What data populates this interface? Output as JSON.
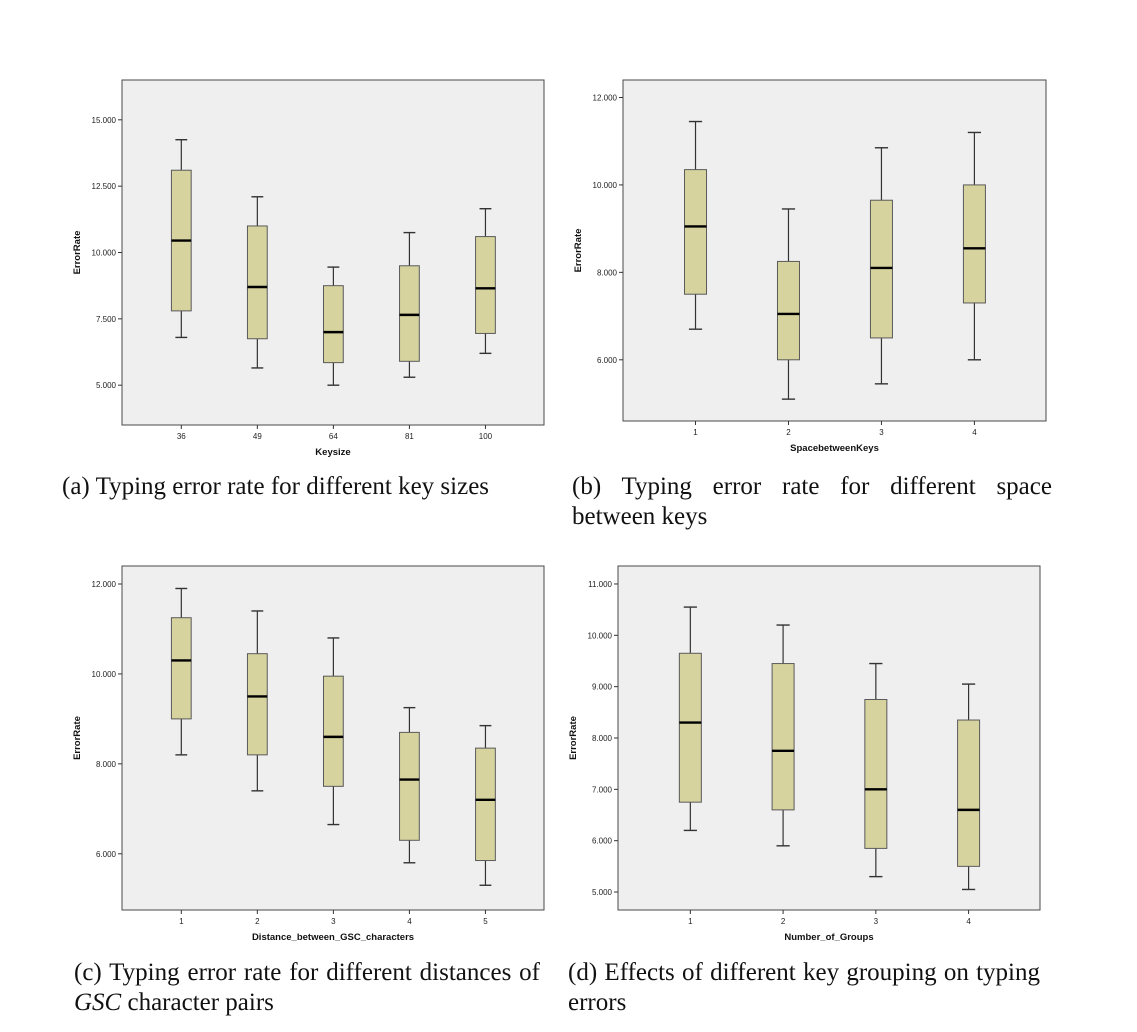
{
  "colors": {
    "plot_background": "#efefef",
    "box_fill": "#d6d39e",
    "median": "#000000"
  },
  "chart_data": [
    {
      "type": "box",
      "xlabel": "Keysize",
      "ylabel": "ErrorRate",
      "categories": [
        "36",
        "49",
        "64",
        "81",
        "100"
      ],
      "yticks": [
        "5.000",
        "7.500",
        "10.000",
        "12.500",
        "15.000"
      ],
      "ylim": [
        3.5,
        16.5
      ],
      "boxes": [
        {
          "min": 6.8,
          "q1": 7.8,
          "median": 10.45,
          "q3": 13.1,
          "max": 14.25
        },
        {
          "min": 5.65,
          "q1": 6.75,
          "median": 8.7,
          "q3": 11.0,
          "max": 12.1
        },
        {
          "min": 5.0,
          "q1": 5.85,
          "median": 7.0,
          "q3": 8.75,
          "max": 9.45
        },
        {
          "min": 5.3,
          "q1": 5.9,
          "median": 7.65,
          "q3": 9.5,
          "max": 10.75
        },
        {
          "min": 6.2,
          "q1": 6.95,
          "median": 8.65,
          "q3": 10.6,
          "max": 11.65
        }
      ],
      "caption": {
        "label": "(a)",
        "text": "Typing error rate for different key sizes",
        "italic": ""
      }
    },
    {
      "type": "box",
      "xlabel": "SpacebetweenKeys",
      "ylabel": "ErrorRate",
      "categories": [
        "1",
        "2",
        "3",
        "4"
      ],
      "yticks": [
        "6.000",
        "8.000",
        "10.000",
        "12.000"
      ],
      "ylim": [
        4.6,
        12.4
      ],
      "boxes": [
        {
          "min": 6.7,
          "q1": 7.5,
          "median": 9.05,
          "q3": 10.35,
          "max": 11.45
        },
        {
          "min": 5.1,
          "q1": 6.0,
          "median": 7.05,
          "q3": 8.25,
          "max": 9.45
        },
        {
          "min": 5.45,
          "q1": 6.5,
          "median": 8.1,
          "q3": 9.65,
          "max": 10.85
        },
        {
          "min": 6.0,
          "q1": 7.3,
          "median": 8.55,
          "q3": 10.0,
          "max": 11.2
        }
      ],
      "caption": {
        "label": "(b)",
        "text": "Typing error rate for different space between keys",
        "italic": ""
      }
    },
    {
      "type": "box",
      "xlabel": "Distance_between_GSC_characters",
      "ylabel": "ErrorRate",
      "categories": [
        "1",
        "2",
        "3",
        "4",
        "5"
      ],
      "yticks": [
        "6.000",
        "8.000",
        "10.000",
        "12.000"
      ],
      "ylim": [
        4.75,
        12.4
      ],
      "boxes": [
        {
          "min": 8.2,
          "q1": 9.0,
          "median": 10.3,
          "q3": 11.25,
          "max": 11.9
        },
        {
          "min": 7.4,
          "q1": 8.2,
          "median": 9.5,
          "q3": 10.45,
          "max": 11.4
        },
        {
          "min": 6.65,
          "q1": 7.5,
          "median": 8.6,
          "q3": 9.95,
          "max": 10.8
        },
        {
          "min": 5.8,
          "q1": 6.3,
          "median": 7.65,
          "q3": 8.7,
          "max": 9.25
        },
        {
          "min": 5.3,
          "q1": 5.85,
          "median": 7.2,
          "q3": 8.35,
          "max": 8.85
        }
      ],
      "caption": {
        "label": "(c)",
        "text": "Typing error rate for different distances of",
        "italic": "GSC",
        "text_after": "character pairs"
      }
    },
    {
      "type": "box",
      "xlabel": "Number_of_Groups",
      "ylabel": "ErrorRate",
      "categories": [
        "1",
        "2",
        "3",
        "4"
      ],
      "yticks": [
        "5.000",
        "6.000",
        "7.000",
        "8.000",
        "9.000",
        "10.000",
        "11.000"
      ],
      "ylim": [
        4.65,
        11.35
      ],
      "boxes": [
        {
          "min": 6.2,
          "q1": 6.75,
          "median": 8.3,
          "q3": 9.65,
          "max": 10.55
        },
        {
          "min": 5.9,
          "q1": 6.6,
          "median": 7.75,
          "q3": 9.45,
          "max": 10.2
        },
        {
          "min": 5.3,
          "q1": 5.85,
          "median": 7.0,
          "q3": 8.75,
          "max": 9.45
        },
        {
          "min": 5.05,
          "q1": 5.5,
          "median": 6.6,
          "q3": 8.35,
          "max": 9.05
        }
      ],
      "caption": {
        "label": "(d)",
        "text": "Effects of different key grouping on typing errors",
        "italic": ""
      }
    }
  ]
}
